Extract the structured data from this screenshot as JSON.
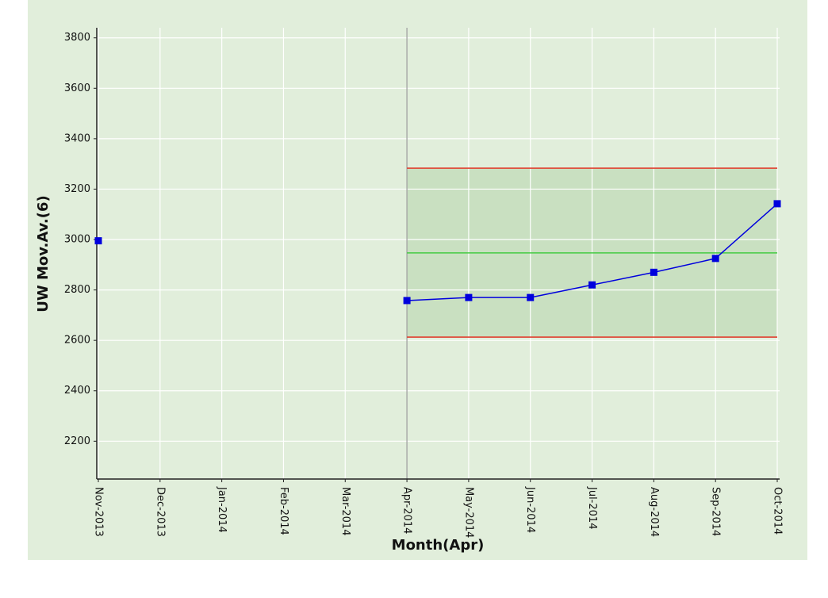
{
  "chart_data": {
    "type": "line",
    "x_label": "Month(Apr)",
    "y_label": "UW Mov.Av.(6)",
    "categories": [
      "Nov-2013",
      "Dec-2013",
      "Jan-2014",
      "Feb-2014",
      "Mar-2014",
      "Apr-2014",
      "May-2014",
      "Jun-2014",
      "Jul-2014",
      "Aug-2014",
      "Sep-2014",
      "Oct-2014"
    ],
    "series": [
      {
        "color": "#0000dd",
        "values": [
          2995,
          null,
          null,
          null,
          null,
          2758,
          2770,
          2770,
          2820,
          2870,
          2925,
          3142
        ]
      },
      {
        "color": "#e04030",
        "values": [
          null,
          null,
          null,
          null,
          null,
          3283,
          3283,
          3283,
          3283,
          3283,
          3283,
          3283
        ]
      },
      {
        "color": "#44cc44",
        "values": [
          null,
          null,
          null,
          null,
          null,
          2947,
          2947,
          2947,
          2947,
          2947,
          2947,
          2947
        ]
      },
      {
        "color": "#e04030",
        "values": [
          null,
          null,
          null,
          null,
          null,
          2613,
          2613,
          2613,
          2613,
          2613,
          2613,
          2613
        ]
      }
    ],
    "ylim": [
      2050,
      3840
    ],
    "yticks": [
      2200,
      2400,
      2600,
      2800,
      3000,
      3200,
      3400,
      3600,
      3800
    ],
    "grid": true
  }
}
